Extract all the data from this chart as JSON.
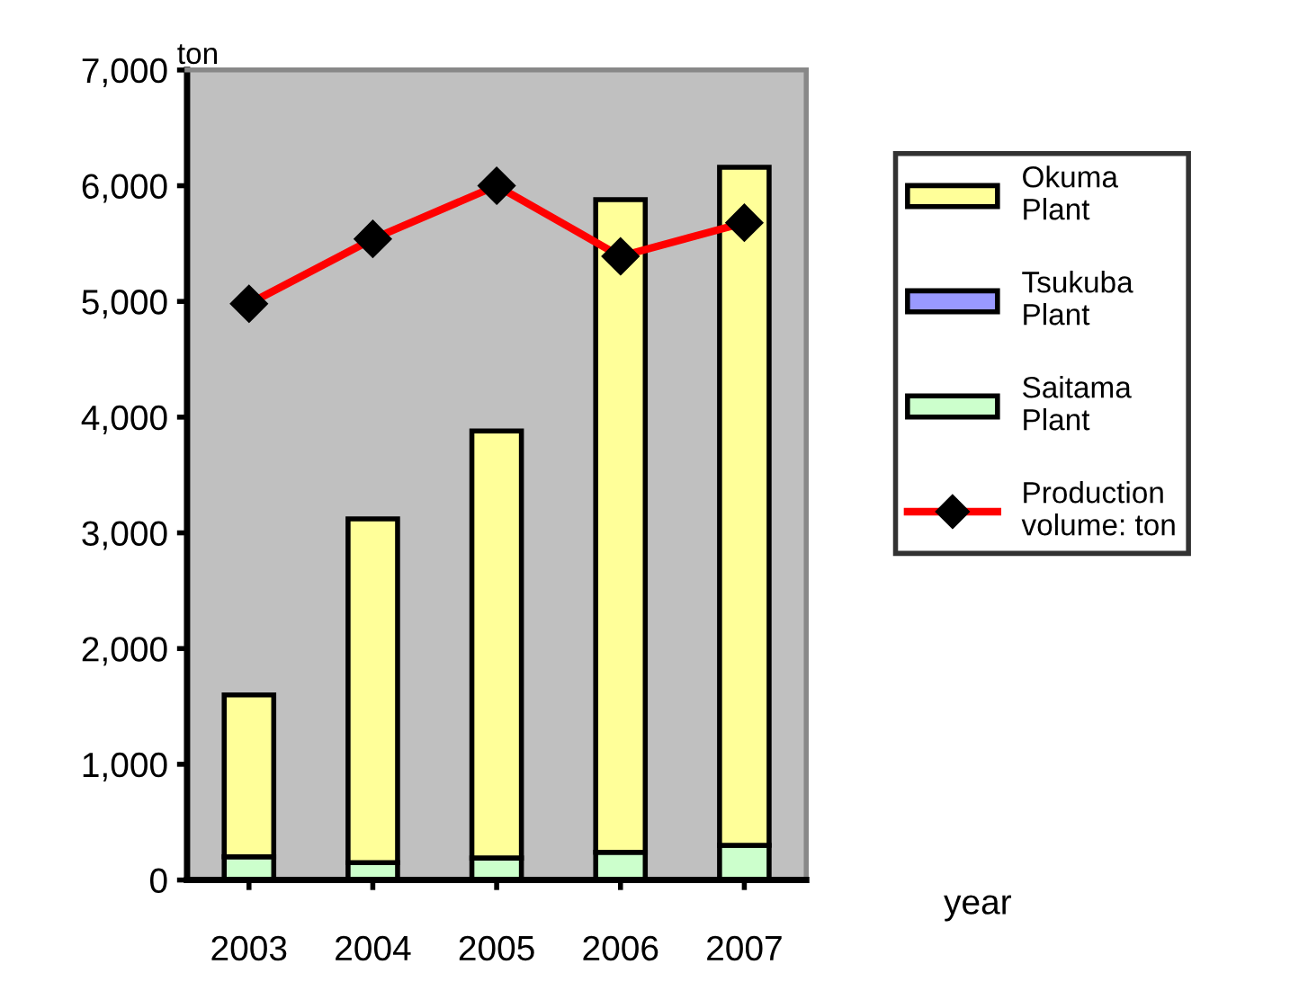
{
  "chart_data": {
    "type": "bar",
    "stacked": true,
    "xlabel": "year",
    "ylabel": "ton",
    "categories": [
      "2003",
      "2004",
      "2005",
      "2006",
      "2007"
    ],
    "series": [
      {
        "name": "Saitama Plant",
        "color": "#ccffcc",
        "values": [
          200,
          150,
          190,
          240,
          300
        ]
      },
      {
        "name": "Tsukuba Plant",
        "color": "#9999ff",
        "values": [
          null,
          null,
          null,
          null,
          null
        ]
      },
      {
        "name": "Okuma Plant",
        "color": "#ffff99",
        "values": [
          1400,
          2970,
          3690,
          5640,
          5860
        ]
      },
      {
        "name": "Production volume: ton",
        "type": "line",
        "color": "#ff0000",
        "marker": "diamond",
        "values": [
          4980,
          5540,
          6000,
          5390,
          5680
        ]
      }
    ],
    "ylim": [
      0,
      7000
    ],
    "yticks": [
      {
        "value": 0,
        "label": "0"
      },
      {
        "value": 1000,
        "label": "1,000"
      },
      {
        "value": 2000,
        "label": "2,000"
      },
      {
        "value": 3000,
        "label": "3,000"
      },
      {
        "value": 4000,
        "label": "4,000"
      },
      {
        "value": 5000,
        "label": "5,000"
      },
      {
        "value": 6000,
        "label": "6,000"
      },
      {
        "value": 7000,
        "label": "7,000"
      }
    ],
    "grid": false,
    "legend": "right"
  }
}
